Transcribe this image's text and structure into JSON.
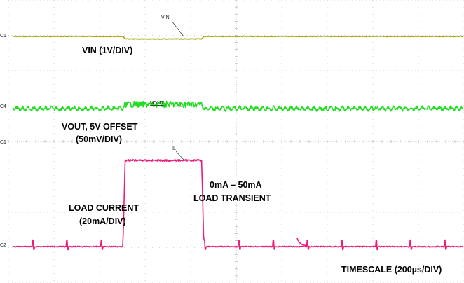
{
  "chart_data": {
    "type": "line",
    "title": "",
    "xlabel": "",
    "ylabel": "",
    "grid": true,
    "grid_divisions": {
      "x": 10,
      "y": 8
    },
    "x_unit": "µs",
    "x_range": [
      0,
      2000
    ],
    "series": [
      {
        "name": "VIN",
        "color": "#a8a400",
        "scale_label": "VIN (1V/DIV)",
        "marker": "VIN",
        "x": [
          0,
          490,
          500,
          840,
          850,
          2000
        ],
        "y": [
          0,
          0,
          -0.04,
          -0.04,
          0,
          0
        ]
      },
      {
        "name": "VOUT",
        "color": "#22dd22",
        "scale_label": [
          "VOUT, 5V OFFSET",
          "(50mV/DIV)"
        ],
        "marker": "VOUT",
        "x": [
          0,
          490,
          500,
          840,
          850,
          2000
        ],
        "y": [
          0,
          0,
          0.1,
          0.1,
          0,
          0
        ]
      },
      {
        "name": "LOAD CURRENT",
        "color": "#ee1b7a",
        "scale_label": [
          "LOAD CURRENT",
          "(20mA/DIV)"
        ],
        "marker": "IL",
        "x": [
          0,
          490,
          500,
          840,
          850,
          2000
        ],
        "y": [
          0,
          0,
          50,
          50,
          0,
          0
        ]
      }
    ],
    "annotations": [
      "0mA – 50mA",
      "LOAD TRANSIENT"
    ],
    "timescale_label": "TIMESCALE (200µs/DIV)",
    "channel_tags": [
      "C1",
      "C4",
      "C1",
      "C2"
    ]
  }
}
